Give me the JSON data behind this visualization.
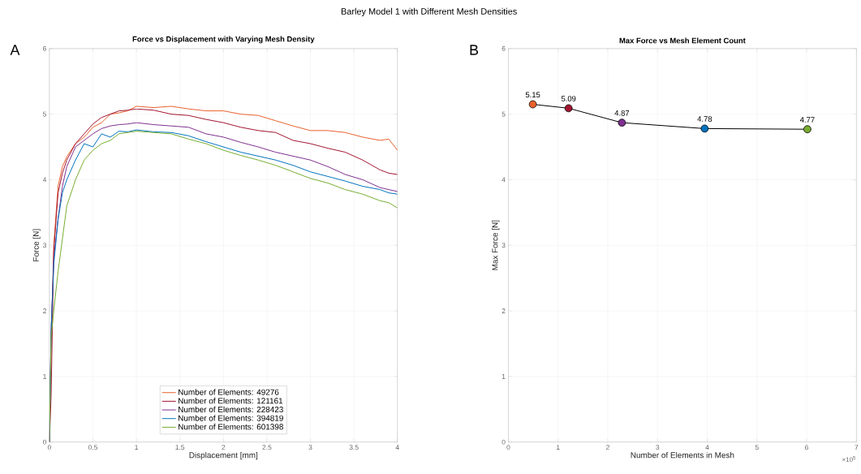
{
  "chart_data": [
    {
      "type": "other",
      "title": "Barley Model 1 with Different Mesh Densities"
    },
    {
      "type": "line",
      "title": "Force vs Displacement with Varying Mesh Density",
      "xlabel": "Displacement [mm]",
      "ylabel": "Force [N]",
      "annotations": [
        "A"
      ],
      "x": [
        0,
        0.02,
        0.05,
        0.1,
        0.15,
        0.2,
        0.3,
        0.4,
        0.5,
        0.6,
        0.7,
        0.8,
        0.9,
        1.0,
        1.2,
        1.4,
        1.6,
        1.8,
        2.0,
        2.2,
        2.4,
        2.6,
        2.8,
        3.0,
        3.2,
        3.4,
        3.6,
        3.8,
        3.9,
        4.0
      ],
      "series": [
        {
          "name": "Number of Elements: 49276",
          "color": "#e8602c",
          "values": [
            0,
            1.5,
            3.0,
            3.9,
            4.2,
            4.35,
            4.55,
            4.65,
            4.8,
            4.87,
            5.0,
            5.02,
            5.05,
            5.12,
            5.1,
            5.12,
            5.08,
            5.05,
            5.05,
            5.0,
            4.98,
            4.9,
            4.82,
            4.75,
            4.75,
            4.72,
            4.65,
            4.6,
            4.62,
            4.45
          ]
        },
        {
          "name": "Number of Elements: 121161",
          "color": "#a2142f",
          "values": [
            0,
            0.7,
            2.9,
            3.8,
            4.1,
            4.3,
            4.55,
            4.7,
            4.85,
            4.95,
            5.0,
            5.05,
            5.06,
            5.08,
            5.06,
            5.0,
            4.98,
            4.92,
            4.87,
            4.8,
            4.75,
            4.72,
            4.6,
            4.55,
            4.48,
            4.42,
            4.3,
            4.15,
            4.1,
            4.08
          ]
        },
        {
          "name": "Number of Elements: 228423",
          "color": "#7e2f8e",
          "values": [
            0,
            1.7,
            2.8,
            3.4,
            3.9,
            4.2,
            4.5,
            4.6,
            4.7,
            4.78,
            4.82,
            4.84,
            4.85,
            4.87,
            4.84,
            4.82,
            4.8,
            4.7,
            4.65,
            4.57,
            4.5,
            4.42,
            4.36,
            4.3,
            4.2,
            4.08,
            4.0,
            3.88,
            3.85,
            3.82
          ]
        },
        {
          "name": "Number of Elements: 394819",
          "color": "#0072bd",
          "values": [
            0,
            1.7,
            2.7,
            3.4,
            3.8,
            4.0,
            4.3,
            4.55,
            4.5,
            4.7,
            4.65,
            4.74,
            4.73,
            4.76,
            4.73,
            4.72,
            4.67,
            4.58,
            4.5,
            4.42,
            4.36,
            4.3,
            4.22,
            4.12,
            4.05,
            3.98,
            3.9,
            3.85,
            3.8,
            3.78
          ]
        },
        {
          "name": "Number of Elements: 601398",
          "color": "#77ac30",
          "values": [
            0,
            1.6,
            2.0,
            2.6,
            3.1,
            3.6,
            4.0,
            4.3,
            4.45,
            4.55,
            4.6,
            4.7,
            4.72,
            4.74,
            4.72,
            4.7,
            4.62,
            4.55,
            4.45,
            4.37,
            4.3,
            4.22,
            4.12,
            4.02,
            3.95,
            3.85,
            3.78,
            3.68,
            3.65,
            3.57
          ]
        }
      ],
      "xlim": [
        0,
        4
      ],
      "ylim": [
        0,
        6
      ],
      "xticks": [
        0,
        0.5,
        1,
        1.5,
        2,
        2.5,
        3,
        3.5,
        4
      ],
      "yticks": [
        0,
        1,
        2,
        3,
        4,
        5,
        6
      ],
      "grid": true,
      "legend": "bottom"
    },
    {
      "type": "line",
      "title": "Max Force vs Mesh Element Count",
      "xlabel": "Number of Elements in Mesh",
      "ylabel": "Max Force [N]",
      "annotations": [
        "B",
        "×10$^{5}$"
      ],
      "x": [
        0.49276,
        1.21161,
        2.28423,
        3.94819,
        6.01398
      ],
      "series": [
        {
          "color": "#000000",
          "colors": [
            "#e8602c",
            "#a2142f",
            "#7e2f8e",
            "#0072bd",
            "#77ac30"
          ],
          "values": [
            5.15,
            5.09,
            4.87,
            4.78,
            4.77
          ],
          "value_labels": [
            "5.15",
            "5.09",
            "4.87",
            "4.78",
            "4.77"
          ]
        }
      ],
      "xlim": [
        0,
        7
      ],
      "ylim": [
        0,
        6
      ],
      "xticks": [
        0,
        1,
        2,
        3,
        4,
        5,
        6,
        7
      ],
      "yticks": [
        0,
        1,
        2,
        3,
        4,
        5,
        6
      ],
      "grid": true,
      "marker": "circle"
    }
  ]
}
